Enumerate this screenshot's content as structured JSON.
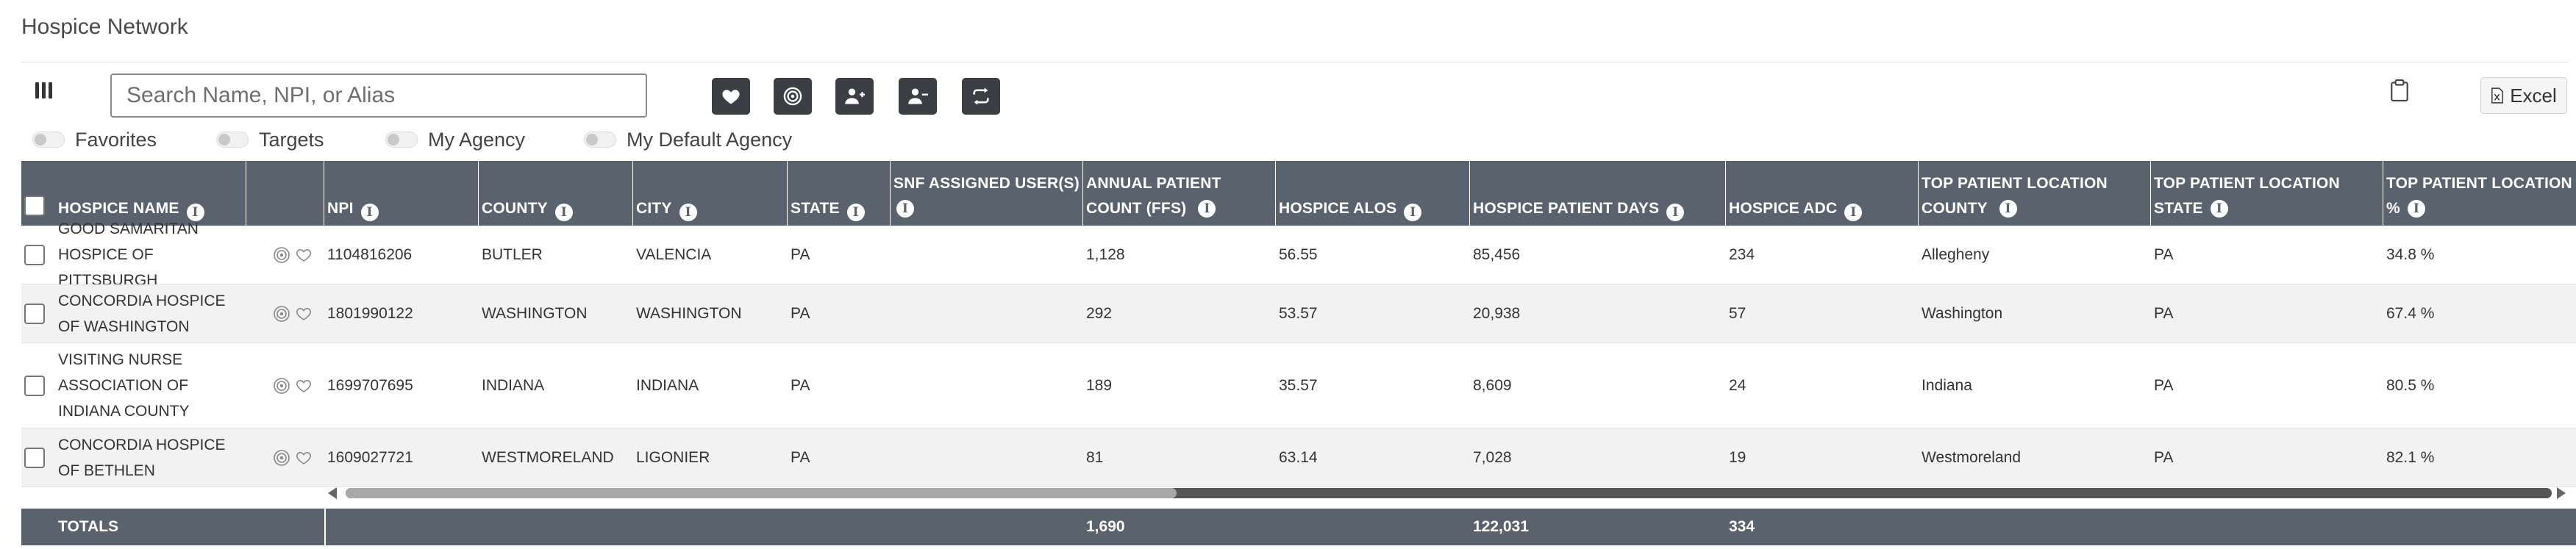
{
  "page": {
    "title": "Hospice Network"
  },
  "toolbar": {
    "search_placeholder": "Search Name, NPI, or Alias",
    "buttons": [
      {
        "name": "favorite-button",
        "icon": "heart-icon"
      },
      {
        "name": "target-button",
        "icon": "target-icon"
      },
      {
        "name": "add-user-button",
        "icon": "user-plus-icon"
      },
      {
        "name": "remove-user-button",
        "icon": "user-minus-icon"
      },
      {
        "name": "refresh-button",
        "icon": "swap-icon"
      }
    ],
    "clipboard_icon": "clipboard-icon",
    "excel_label": "Excel"
  },
  "filters": [
    {
      "label": "Favorites",
      "on": false
    },
    {
      "label": "Targets",
      "on": false
    },
    {
      "label": "My Agency",
      "on": false
    },
    {
      "label": "My Default Agency",
      "on": false
    }
  ],
  "table": {
    "columns": [
      {
        "key": "name",
        "label": "HOSPICE NAME"
      },
      {
        "key": "actions",
        "label": ""
      },
      {
        "key": "npi",
        "label": "NPI"
      },
      {
        "key": "county",
        "label": "COUNTY"
      },
      {
        "key": "city",
        "label": "CITY"
      },
      {
        "key": "state",
        "label": "STATE"
      },
      {
        "key": "snf",
        "label": "SNF ASSIGNED USER(S)"
      },
      {
        "key": "annual",
        "label": "ANNUAL PATIENT COUNT (FFS)"
      },
      {
        "key": "alos",
        "label": "HOSPICE ALOS"
      },
      {
        "key": "days",
        "label": "HOSPICE PATIENT DAYS"
      },
      {
        "key": "adc",
        "label": "HOSPICE ADC"
      },
      {
        "key": "tpl_county",
        "label": "TOP PATIENT LOCATION COUNTY"
      },
      {
        "key": "tpl_state",
        "label": "TOP PATIENT LOCATION STATE"
      },
      {
        "key": "tpl_pct",
        "label": "TOP PATIENT LOCATION %"
      }
    ],
    "rows": [
      {
        "name": "GOOD SAMARITAN HOSPICE OF PITTSBURGH",
        "npi": "1104816206",
        "county": "BUTLER",
        "city": "VALENCIA",
        "state": "PA",
        "snf": "",
        "annual": "1,128",
        "alos": "56.55",
        "days": "85,456",
        "adc": "234",
        "tpl_county": "Allegheny",
        "tpl_state": "PA",
        "tpl_pct": "34.8 %"
      },
      {
        "name": "CONCORDIA HOSPICE OF WASHINGTON",
        "npi": "1801990122",
        "county": "WASHINGTON",
        "city": "WASHINGTON",
        "state": "PA",
        "snf": "",
        "annual": "292",
        "alos": "53.57",
        "days": "20,938",
        "adc": "57",
        "tpl_county": "Washington",
        "tpl_state": "PA",
        "tpl_pct": "67.4 %"
      },
      {
        "name": "VISITING NURSE ASSOCIATION OF INDIANA COUNTY",
        "npi": "1699707695",
        "county": "INDIANA",
        "city": "INDIANA",
        "state": "PA",
        "snf": "",
        "annual": "189",
        "alos": "35.57",
        "days": "8,609",
        "adc": "24",
        "tpl_county": "Indiana",
        "tpl_state": "PA",
        "tpl_pct": "80.5 %"
      },
      {
        "name": "CONCORDIA HOSPICE OF BETHLEN",
        "npi": "1609027721",
        "county": "WESTMORELAND",
        "city": "LIGONIER",
        "state": "PA",
        "snf": "",
        "annual": "81",
        "alos": "63.14",
        "days": "7,028",
        "adc": "19",
        "tpl_county": "Westmoreland",
        "tpl_state": "PA",
        "tpl_pct": "82.1 %"
      }
    ],
    "totals": {
      "label": "TOTALS",
      "annual": "1,690",
      "days": "122,031",
      "adc": "334"
    }
  },
  "colors": {
    "header_bg": "#5a636d",
    "button_bg": "#3b3f44",
    "row_alt": "#f2f2f2"
  }
}
